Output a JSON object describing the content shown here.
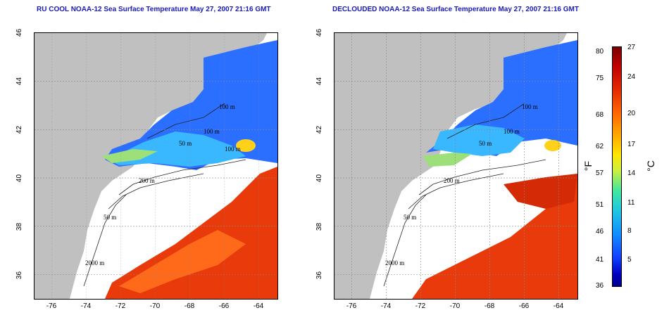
{
  "left_panel": {
    "title": "RU COOL NOAA-12 Sea Surface Temperature May 27, 2007 21:16 GMT",
    "contour_labels": [
      "100 m",
      "100 m",
      "100 m",
      "50 m",
      "200 m",
      "50 m",
      "2000 m"
    ]
  },
  "right_panel": {
    "title": "DECLOUDED NOAA-12 Sea Surface Temperature May 27, 2007 21:16 GMT",
    "contour_labels": [
      "100 m",
      "100 m",
      "50 m",
      "200 m",
      "50 m",
      "2000 m"
    ]
  },
  "axes": {
    "x_ticks": [
      "-76",
      "-74",
      "-72",
      "-70",
      "-68",
      "-66",
      "-64"
    ],
    "y_ticks": [
      "36",
      "38",
      "40",
      "42",
      "44",
      "46"
    ],
    "lon_range": [
      -77,
      -63
    ],
    "lat_range": [
      35,
      46
    ]
  },
  "colorbar": {
    "fahrenheit_label": "°F",
    "celsius_label": "°C",
    "fahrenheit_ticks": [
      "80",
      "75",
      "68",
      "62",
      "57",
      "51",
      "46",
      "41",
      "36"
    ],
    "celsius_ticks": [
      "27",
      "24",
      "20",
      "17",
      "14",
      "11",
      "8",
      "5"
    ]
  },
  "colors": {
    "land": "#c0c0c0",
    "title": "#1a1ab8",
    "warm": "#e83a0a",
    "cool": "#2a7bff"
  }
}
